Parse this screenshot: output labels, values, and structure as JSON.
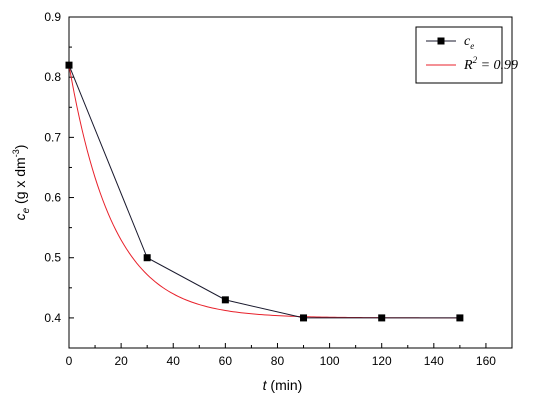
{
  "chart_data": {
    "type": "line",
    "xlim": [
      0,
      170
    ],
    "ylim": [
      0.35,
      0.9
    ],
    "x_ticks": [
      0,
      20,
      40,
      60,
      80,
      100,
      120,
      140,
      160
    ],
    "y_ticks": [
      0.4,
      0.5,
      0.6,
      0.7,
      0.8,
      0.9
    ],
    "x_tick_labels": [
      "0",
      "20",
      "40",
      "60",
      "80",
      "100",
      "120",
      "140",
      "160"
    ],
    "y_tick_labels": [
      "0.4",
      "0.5",
      "0.6",
      "0.7",
      "0.8",
      "0.9"
    ],
    "xlabel": {
      "var": "t",
      "unit": " (min)"
    },
    "ylabel": {
      "var": "c",
      "sub": "e",
      "unit": " (g x dm",
      "sup": "-3",
      "close": ")"
    },
    "grid": false,
    "legend_position": "top-right",
    "series": [
      {
        "name": "c",
        "name_sub": "e",
        "style": "line-markers",
        "color": "#1a1a2e",
        "x": [
          0,
          30,
          60,
          90,
          120,
          150
        ],
        "y": [
          0.82,
          0.5,
          0.43,
          0.4,
          0.4,
          0.4
        ]
      },
      {
        "name": "R",
        "name_sup": "2",
        "name_suffix": " = 0.99",
        "style": "fit-curve",
        "color": "#e8212b",
        "model": {
          "form": "y = y0 + A*exp(-x/t)",
          "y0": 0.4,
          "A": 0.42,
          "t": 17.0
        }
      }
    ]
  }
}
